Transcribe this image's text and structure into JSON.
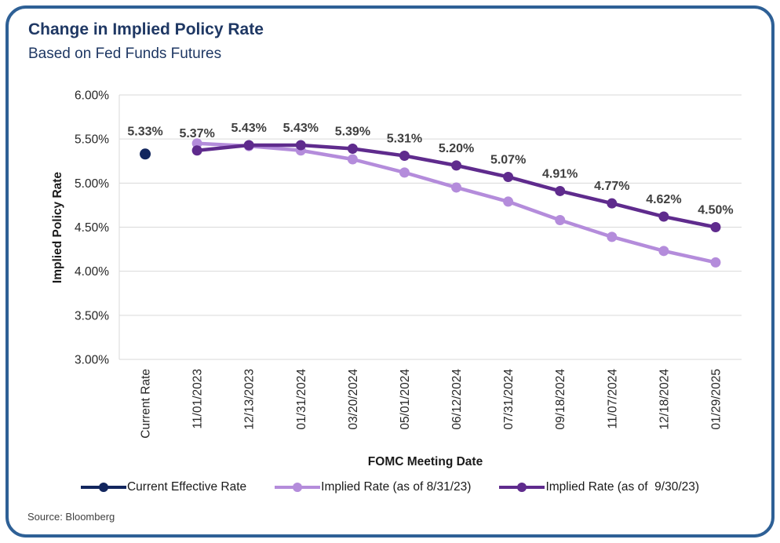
{
  "header": {
    "title": "Change in Implied Policy Rate",
    "subtitle": "Based on Fed Funds Futures",
    "title_color": "#1F3864"
  },
  "source": "Source: Bloomberg",
  "frame_border_color": "#2E6096",
  "chart_data": {
    "type": "line",
    "title": "Change in Implied Policy Rate",
    "subtitle": "Based on Fed Funds Futures",
    "xlabel": "FOMC Meeting Date",
    "ylabel": "Implied Policy Rate",
    "ylim": [
      3.0,
      6.0
    ],
    "ytick_step": 0.5,
    "ytick_labels": [
      "3.00%",
      "3.50%",
      "4.00%",
      "4.50%",
      "5.00%",
      "5.50%",
      "6.00%"
    ],
    "grid": true,
    "legend_position": "bottom",
    "colors": {
      "grid": "#D9D9D9",
      "axis_line": "#D9D9D9",
      "tick_text": "#262626",
      "data_label": "#3F3F3F"
    },
    "categories": [
      "Current Rate",
      "11/01/2023",
      "12/13/2023",
      "01/31/2024",
      "03/20/2024",
      "05/01/2024",
      "06/12/2024",
      "07/31/2024",
      "09/18/2024",
      "11/07/2024",
      "12/18/2024",
      "01/29/2025"
    ],
    "series": [
      {
        "name": "Current Effective Rate",
        "color": "#12265E",
        "marker_radius": 7,
        "label_dy": -24,
        "values": [
          5.33,
          null,
          null,
          null,
          null,
          null,
          null,
          null,
          null,
          null,
          null,
          null
        ],
        "labels": [
          "5.33%",
          null,
          null,
          null,
          null,
          null,
          null,
          null,
          null,
          null,
          null,
          null
        ]
      },
      {
        "name": "Implied Rate (as of 8/31/23)",
        "color": "#B48CDB",
        "marker_radius": 6.5,
        "values": [
          null,
          5.45,
          5.42,
          5.37,
          5.27,
          5.12,
          4.95,
          4.79,
          4.58,
          4.39,
          4.23,
          4.1
        ],
        "labels": null
      },
      {
        "name": "Implied Rate (as of  9/30/23)",
        "color": "#5F2B8D",
        "marker_radius": 6.5,
        "label_dy": -17,
        "values": [
          null,
          5.37,
          5.43,
          5.43,
          5.39,
          5.31,
          5.2,
          5.07,
          4.91,
          4.77,
          4.62,
          4.5
        ],
        "labels": [
          null,
          "5.37%",
          "5.43%",
          "5.43%",
          "5.39%",
          "5.31%",
          "5.20%",
          "5.07%",
          "4.91%",
          "4.77%",
          "4.62%",
          "4.50%"
        ]
      }
    ]
  }
}
